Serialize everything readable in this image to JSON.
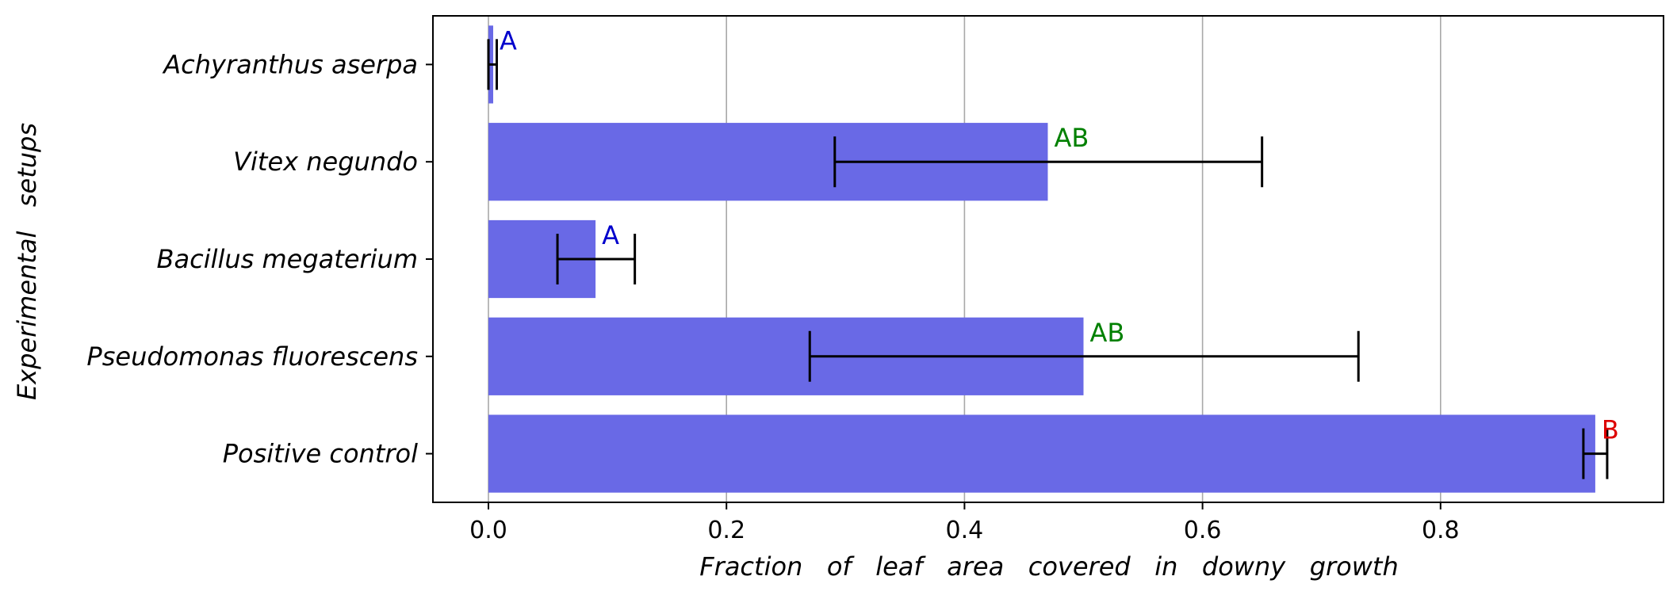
{
  "chart_data": {
    "type": "bar",
    "orientation": "horizontal",
    "title": "",
    "xlabel": "Fraction   of   leaf   area   covered   in   downy   growth",
    "ylabel": "Experimental   setups",
    "xlim": [
      -0.046,
      0.963
    ],
    "xticks": [
      0.0,
      0.2,
      0.4,
      0.6,
      0.8
    ],
    "xtick_labels": [
      "0.0",
      "0.2",
      "0.4",
      "0.6",
      "0.8"
    ],
    "grid": "vertical",
    "bar_color": "#6969e6",
    "categories": [
      "Achyranthus   aserpa",
      "Vitex   negundo",
      "Bacillus   megaterium",
      "Pseudomonas   fluorescens",
      "Positive   control"
    ],
    "values": [
      0.004,
      0.47,
      0.09,
      0.5,
      0.93
    ],
    "error_low": [
      0.0,
      0.291,
      0.058,
      0.27,
      0.92
    ],
    "error_high": [
      0.007,
      0.65,
      0.123,
      0.731,
      0.94
    ],
    "significance": [
      {
        "label": "A",
        "color": "#0000cc"
      },
      {
        "label": "AB",
        "color": "#008000"
      },
      {
        "label": "A",
        "color": "#0000cc"
      },
      {
        "label": "AB",
        "color": "#008000"
      },
      {
        "label": "B",
        "color": "#dd0000"
      }
    ]
  }
}
